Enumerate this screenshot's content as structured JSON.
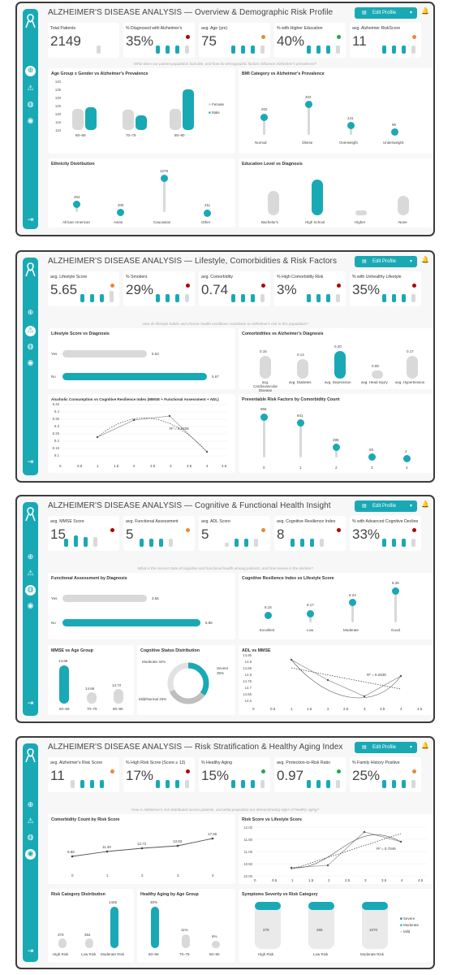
{
  "dashboards": [
    {
      "title": "ALZHEIMER'S DISEASE ANALYSIS — Overview & Demographic Risk Profile",
      "question": "What does our patient population look like, and how do demographic factors influence Alzheimer's prevalence?",
      "kpis": [
        {
          "label": "Total Patients",
          "value": "2149",
          "dot": ""
        },
        {
          "label": "% Diagnosed with Alzheimer's",
          "value": "35%",
          "dot": "#b30000"
        },
        {
          "label": "avg. Age (yrs)",
          "value": "75",
          "dot": "#e8893a"
        },
        {
          "label": "% with Higher Education",
          "value": "40%",
          "dot": "#23a84f"
        },
        {
          "label": "avg. Alzheimer RiskScore",
          "value": "11",
          "dot": "#e8893a"
        }
      ],
      "age_gender": {
        "title": "Age Group x Gender vs Alzheimer's Prevalence",
        "y_ticks": [
          "140",
          "135",
          "130",
          "125",
          "120",
          "115",
          "110"
        ],
        "categories": [
          "60–69",
          "70–79",
          "80–90"
        ],
        "legend": [
          "Female",
          "Male"
        ]
      },
      "bmi": {
        "title": "BMI Category vs Alzheimer's Prevalence",
        "items": [
          {
            "label": "Normal",
            "value": "202"
          },
          {
            "label": "Obese",
            "value": "322"
          },
          {
            "label": "Overweight",
            "value": "141"
          },
          {
            "label": "Underweight",
            "value": "95"
          }
        ]
      },
      "ethnicity": {
        "title": "Ethnicity Distribution",
        "items": [
          {
            "label": "African American",
            "value": "454"
          },
          {
            "label": "Asian",
            "value": "206"
          },
          {
            "label": "Caucasian",
            "value": "1278"
          },
          {
            "label": "Other",
            "value": "211"
          }
        ]
      },
      "education": {
        "title": "Education Level vs Diagnosis",
        "items": [
          "Bachelor's",
          "High School",
          "Higher",
          "None"
        ]
      }
    },
    {
      "title": "ALZHEIMER'S DISEASE ANALYSIS — Lifestyle, Comorbidities & Risk Factors",
      "question": "How do lifestyle habits and chronic health conditions contribute to Alzheimer's risk in this population?",
      "kpis": [
        {
          "label": "avg. Lifestyle Score",
          "value": "5.65",
          "dot": "#e8893a"
        },
        {
          "label": "% Smokers",
          "value": "29%",
          "dot": "#b30000"
        },
        {
          "label": "avg. Comorbidity",
          "value": "0.74",
          "dot": "#b30000"
        },
        {
          "label": "% High Comorbidity Risk",
          "value": "3%",
          "dot": "#b30000"
        },
        {
          "label": "% with Unhealthy Lifestyle",
          "value": "35%",
          "dot": "#b30000"
        }
      ],
      "lifestyle": {
        "title": "Lifestyle Score vs Diagnosis",
        "items": [
          {
            "label": "Yes",
            "value": "5.63"
          },
          {
            "label": "No",
            "value": "5.67"
          }
        ]
      },
      "comorb": {
        "title": "Comorbidities vs Alzheimer's Diagnosis",
        "items": [
          {
            "label": "avg. Cardiovascular Disease",
            "value": "0.16"
          },
          {
            "label": "avg. Diabetes",
            "value": "0.14"
          },
          {
            "label": "avg. Depression",
            "value": "0.20"
          },
          {
            "label": "avg. Head Injury",
            "value": "0.08"
          },
          {
            "label": "avg. Hypertension",
            "value": "0.17"
          }
        ]
      },
      "alcohol": {
        "title": "Alcoholic Consumption vs Cognitive Resilience Index (MMSE + Functional Assessment + ADL)",
        "y_ticks": [
          "8.45",
          "8.4",
          "8.35",
          "8.3",
          "8.25",
          "8.2",
          "8.15",
          "8.1"
        ],
        "x_ticks": [
          "0",
          "0.5",
          "1",
          "1.5",
          "2",
          "2.5",
          "3",
          "3.5",
          "4",
          "4.5"
        ],
        "r2": "R² = 0.9408"
      },
      "preventable": {
        "title": "Preventable Risk Factors by Comorbidity Count",
        "items": [
          {
            "label": "0",
            "value": "966"
          },
          {
            "label": "1",
            "value": "841"
          },
          {
            "label": "2",
            "value": "285"
          },
          {
            "label": "3",
            "value": "55"
          },
          {
            "label": "4",
            "value": "2"
          }
        ]
      }
    },
    {
      "title": "ALZHEIMER'S DISEASE ANALYSIS — Cognitive & Functional Health Insight",
      "question": "What is the current state of cognitive and functional health among patients, and how severe is the decline?",
      "kpis": [
        {
          "label": "avg. MMSE Score",
          "value": "15",
          "dot": "#b30000"
        },
        {
          "label": "avg. Functional Assessment",
          "value": "5",
          "dot": "#e8893a"
        },
        {
          "label": "avg. ADL Score",
          "value": "5",
          "dot": "#e8893a"
        },
        {
          "label": "avg. Cognitive Resilience Index",
          "value": "8",
          "dot": "#b30000"
        },
        {
          "label": "% with Advanced Cognitive Decline",
          "value": "33%",
          "dot": "#b30000"
        }
      ],
      "functional": {
        "title": "Functional Assessment by Diagnosis",
        "items": [
          {
            "label": "Yes",
            "value": "3.65"
          },
          {
            "label": "No",
            "value": "5.86"
          }
        ]
      },
      "cri": {
        "title": "Cognitive Resilience Index vs Lifestyle Score",
        "items": [
          {
            "label": "Excellent",
            "value": "8.15"
          },
          {
            "label": "Low",
            "value": "8.17"
          },
          {
            "label": "Moderate",
            "value": "8.24"
          },
          {
            "label": "Good",
            "value": "8.35"
          }
        ]
      },
      "mmse_age": {
        "title": "MMSE vs Age Group",
        "items": [
          {
            "label": "60–69",
            "value": "14.89"
          },
          {
            "label": "70–79",
            "value": "14.66"
          },
          {
            "label": "80–90",
            "value": "14.72"
          }
        ]
      },
      "cog_status": {
        "title": "Cognitive Status Distribution",
        "moderate": "Moderate 32%",
        "severe": "Severe 35%",
        "mild": "Mild/Normal 33%"
      },
      "adl_mmse": {
        "title": "ADL vs MMSE",
        "y_ticks": [
          "14.95",
          "14.9",
          "14.85",
          "14.8",
          "14.75",
          "14.7",
          "14.65",
          "14.6"
        ],
        "x_ticks": [
          "0",
          "0.5",
          "1",
          "1.5",
          "2",
          "2.5",
          "3",
          "3.5",
          "4",
          "4.5"
        ],
        "r2": "R² = 0.2939"
      }
    },
    {
      "title": "ALZHEIMER'S DISEASE ANALYSIS — Risk Stratification & Healthy Aging Index",
      "question": "How is Alzheimer's risk distributed across patients, and what proportion are demonstrating signs of healthy aging?",
      "kpis": [
        {
          "label": "avg. Alzheimer's Risk Score",
          "value": "11",
          "dot": "#e8893a"
        },
        {
          "label": "% High Risk Score (Score ≥ 13)",
          "value": "17%",
          "dot": "#b30000"
        },
        {
          "label": "% Healthy Aging",
          "value": "15%",
          "dot": "#23a84f"
        },
        {
          "label": "avg. Protection-to-Risk Ratio",
          "value": "0.97",
          "dot": "#23a84f"
        },
        {
          "label": "% Family History Positive",
          "value": "25%",
          "dot": "#e8893a"
        }
      ],
      "comorb_risk": {
        "title": "Comorbidity Count by Risk Score",
        "values": [
          "9.88",
          "11.40",
          "12.72",
          "13.93",
          "17.55"
        ],
        "x_ticks": [
          "0",
          "1",
          "2",
          "3",
          "4"
        ]
      },
      "risk_life": {
        "title": "Risk Score vs Lifestyle Score",
        "y_ticks": [
          "12.00",
          "11.50",
          "11.00",
          "10.50",
          "10.00"
        ],
        "x_ticks": [
          "0",
          "0.5",
          "1",
          "1.5",
          "2",
          "2.5",
          "3",
          "3.5",
          "4",
          "4.5"
        ],
        "r2": "R² = 0.7049"
      },
      "risk_cat": {
        "title": "Risk Category Distribution",
        "items": [
          {
            "label": "High Risk",
            "value": "370"
          },
          {
            "label": "Low Risk",
            "value": "354"
          },
          {
            "label": "Moderate Risk",
            "value": "1425"
          }
        ]
      },
      "healthy_age": {
        "title": "Healthy Aging by Age Group",
        "items": [
          {
            "label": "60–69",
            "value": "30%"
          },
          {
            "label": "70–79",
            "value": "11%"
          },
          {
            "label": "80–90",
            "value": "6%"
          }
        ]
      },
      "severity": {
        "title": "Symptoms Severity vs Risk Category",
        "items": [
          {
            "label": "High Risk",
            "value": "279"
          },
          {
            "label": "Low Risk",
            "value": "265"
          },
          {
            "label": "Moderate Risk",
            "value": "1070"
          }
        ],
        "legend": [
          "Severe",
          "Moderate",
          "Mild"
        ]
      }
    }
  ],
  "edit_label": "Edit Profile"
}
